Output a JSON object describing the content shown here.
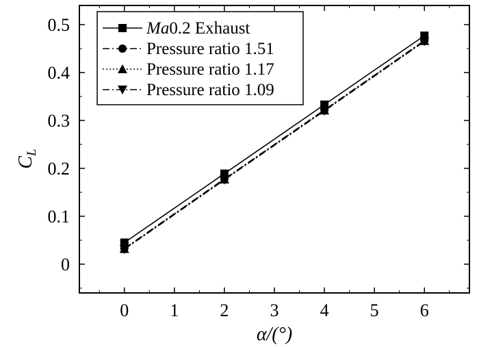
{
  "chart_data": {
    "type": "line",
    "xlabel": "α/(°)",
    "ylabel": "C",
    "ylabel_subscript": "L",
    "xlim": [
      -0.9,
      6.9
    ],
    "ylim": [
      -0.06,
      0.54
    ],
    "xticks": [
      0,
      1,
      2,
      3,
      4,
      5,
      6
    ],
    "yticks": [
      0,
      0.1,
      0.2,
      0.3,
      0.4,
      0.5
    ],
    "xtick_labels": [
      "0",
      "1",
      "2",
      "3",
      "4",
      "5",
      "6"
    ],
    "ytick_labels": [
      "0",
      "0.1",
      "0.2",
      "0.3",
      "0.4",
      "0.5"
    ],
    "legend_position": "top-left",
    "series": [
      {
        "name_italic": "Ma",
        "name": "0.2 Exhaust",
        "marker": "square",
        "dash": "solid",
        "x": [
          0,
          2,
          4,
          6
        ],
        "values": [
          0.045,
          0.189,
          0.333,
          0.477
        ]
      },
      {
        "name": "Pressure ratio 1.51",
        "marker": "circle",
        "dash": "dashdot",
        "x": [
          0,
          2,
          4,
          6
        ],
        "values": [
          0.033,
          0.178,
          0.322,
          0.467
        ]
      },
      {
        "name": "Pressure ratio 1.17",
        "marker": "triangle-up",
        "dash": "dotted",
        "x": [
          0,
          2,
          4,
          6
        ],
        "values": [
          0.032,
          0.177,
          0.321,
          0.466
        ]
      },
      {
        "name": "Pressure ratio 1.09",
        "marker": "triangle-down",
        "dash": "dashdot",
        "x": [
          0,
          2,
          4,
          6
        ],
        "values": [
          0.031,
          0.176,
          0.32,
          0.465
        ]
      }
    ]
  }
}
